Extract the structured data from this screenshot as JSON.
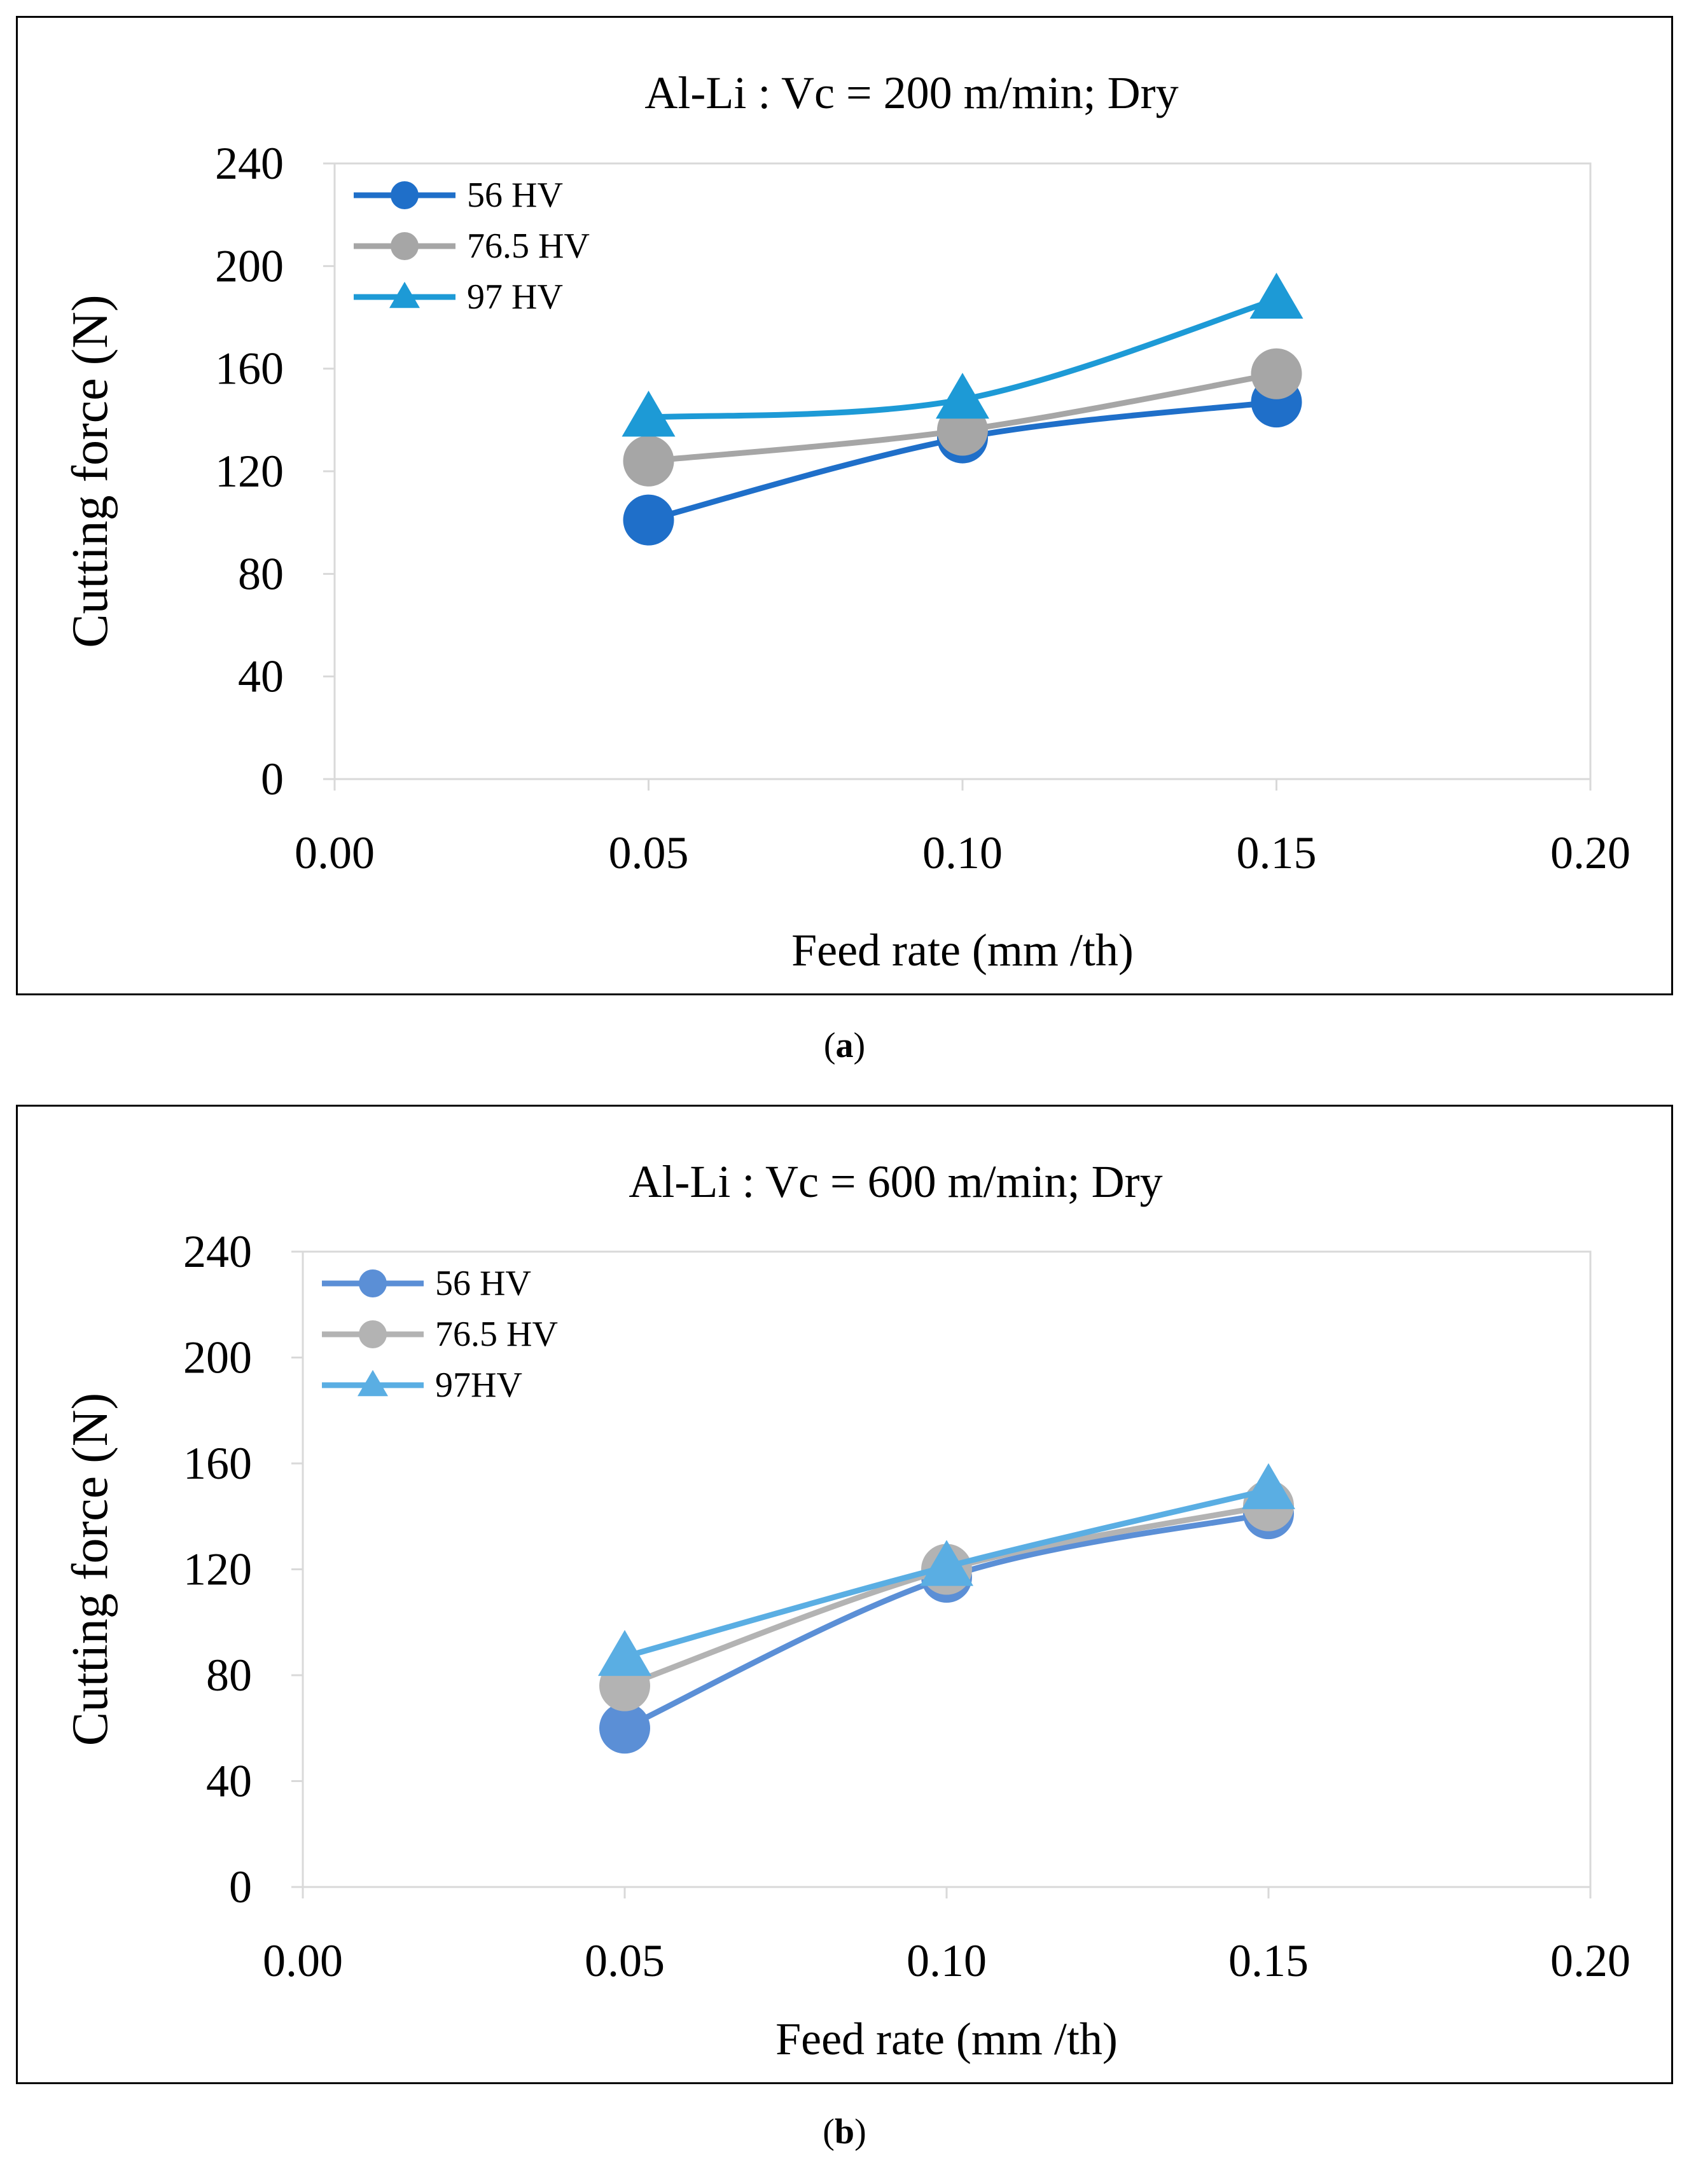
{
  "chart_data": [
    {
      "type": "line",
      "title": "Al-Li : Vc = 200 m/min; Dry",
      "xlabel": "Feed rate (mm /th)",
      "ylabel": "Cutting force (N)",
      "xlim": [
        0,
        0.2
      ],
      "ylim": [
        0,
        240
      ],
      "xticks": [
        "0.00",
        "0.05",
        "0.10",
        "0.15",
        "0.20"
      ],
      "yticks": [
        "0",
        "40",
        "80",
        "120",
        "160",
        "200",
        "240"
      ],
      "grid": false,
      "legend_position": "top-left",
      "series": [
        {
          "name": "56 HV",
          "marker": "circle",
          "color": "#1f6fc9",
          "x": [
            0.05,
            0.1,
            0.15
          ],
          "y": [
            101,
            133,
            147
          ]
        },
        {
          "name": "76.5 HV",
          "marker": "circle",
          "color": "#a6a6a6",
          "x": [
            0.05,
            0.1,
            0.15
          ],
          "y": [
            124,
            136,
            158
          ]
        },
        {
          "name": "97 HV",
          "marker": "triangle",
          "color": "#1d9ad6",
          "x": [
            0.05,
            0.1,
            0.15
          ],
          "y": [
            141,
            148,
            187
          ]
        }
      ]
    },
    {
      "type": "line",
      "title": "Al-Li : Vc = 600 m/min;  Dry",
      "xlabel": "Feed rate (mm /th)",
      "ylabel": "Cutting force (N)",
      "xlim": [
        0,
        0.2
      ],
      "ylim": [
        0,
        240
      ],
      "xticks": [
        "0.00",
        "0.05",
        "0.10",
        "0.15",
        "0.20"
      ],
      "yticks": [
        "0",
        "40",
        "80",
        "120",
        "160",
        "200",
        "240"
      ],
      "grid": false,
      "legend_position": "top-left",
      "series": [
        {
          "name": "56 HV",
          "marker": "circle",
          "color": "#5b8fd6",
          "x": [
            0.05,
            0.1,
            0.15
          ],
          "y": [
            60,
            117,
            141
          ]
        },
        {
          "name": "76.5 HV",
          "marker": "circle",
          "color": "#b3b3b3",
          "x": [
            0.05,
            0.1,
            0.15
          ],
          "y": [
            76,
            120,
            144
          ]
        },
        {
          "name": "97HV",
          "marker": "triangle",
          "color": "#5aaee3",
          "x": [
            0.05,
            0.1,
            0.15
          ],
          "y": [
            87,
            121,
            150
          ]
        }
      ]
    }
  ],
  "captions": {
    "a": {
      "open": "(",
      "letter": "a",
      "close": ")"
    },
    "b": {
      "open": "(",
      "letter": "b",
      "close": ")"
    }
  }
}
